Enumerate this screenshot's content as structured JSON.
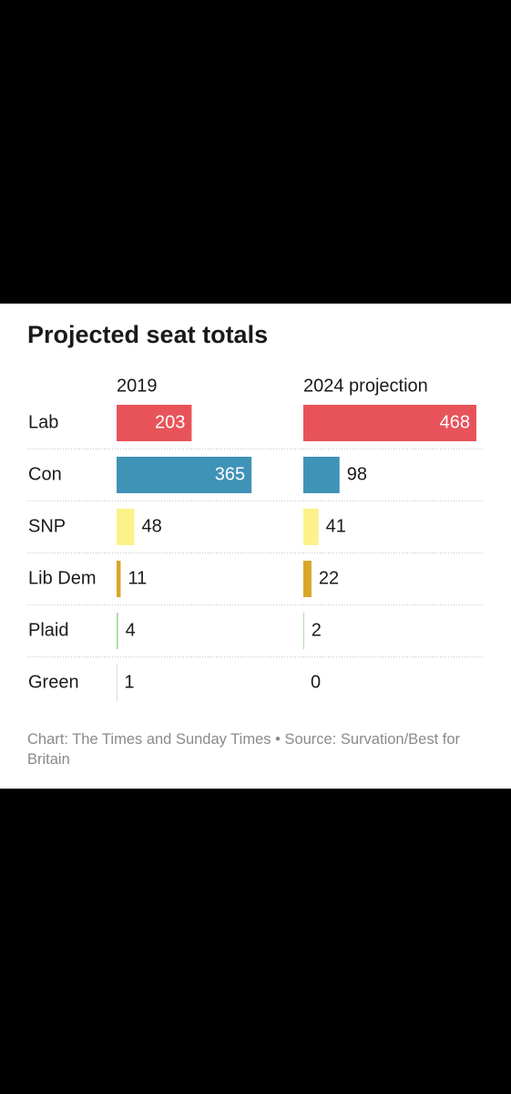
{
  "chart_data": {
    "type": "bar",
    "title": "Projected seat totals",
    "categories": [
      "Lab",
      "Con",
      "SNP",
      "Lib Dem",
      "Plaid",
      "Green"
    ],
    "colors": [
      "#e8535a",
      "#3f93b7",
      "#fdf28a",
      "#d9a52a",
      "#a4d29a",
      "#7fbf6a"
    ],
    "series": [
      {
        "name": "2019",
        "values": [
          203,
          365,
          48,
          11,
          4,
          1
        ]
      },
      {
        "name": "2024 projection",
        "values": [
          468,
          98,
          41,
          22,
          2,
          0
        ]
      }
    ],
    "source": "Chart: The Times and Sunday Times • Source: Survation/Best for Britain"
  }
}
